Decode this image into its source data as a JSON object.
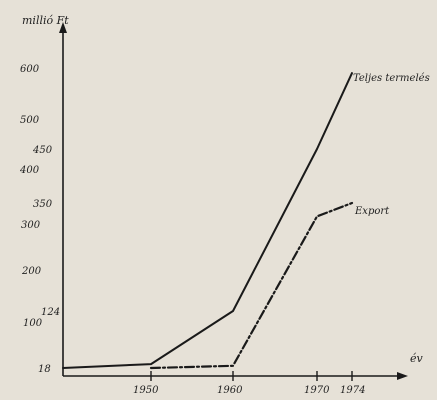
{
  "chart_data": {
    "type": "line",
    "ylabel": "millió Ft",
    "xlabel": "év",
    "x_ticks": [
      1950,
      1960,
      1970,
      1974
    ],
    "y_ticks": [
      {
        "value": 18,
        "label": "18"
      },
      {
        "value": 100,
        "label": "100"
      },
      {
        "value": 124,
        "label": "124"
      },
      {
        "value": 200,
        "label": "200"
      },
      {
        "value": 300,
        "label": "300"
      },
      {
        "value": 350,
        "label": "350"
      },
      {
        "value": 400,
        "label": "400"
      },
      {
        "value": 450,
        "label": "450"
      },
      {
        "value": 500,
        "label": "500"
      },
      {
        "value": 600,
        "label": "600"
      }
    ],
    "series": [
      {
        "name": "Teljes termelés",
        "style": "solid",
        "points": [
          [
            1930,
            18
          ],
          [
            1950,
            25
          ],
          [
            1960,
            124
          ],
          [
            1970,
            450
          ],
          [
            1974,
            590
          ]
        ]
      },
      {
        "name": "Export",
        "style": "dash-dot",
        "points": [
          [
            1950,
            18
          ],
          [
            1960,
            22
          ],
          [
            1970,
            318
          ],
          [
            1974,
            350
          ]
        ]
      }
    ],
    "colors": {
      "ink": "#1a1a1a",
      "paper": "#e6e1d7"
    }
  }
}
